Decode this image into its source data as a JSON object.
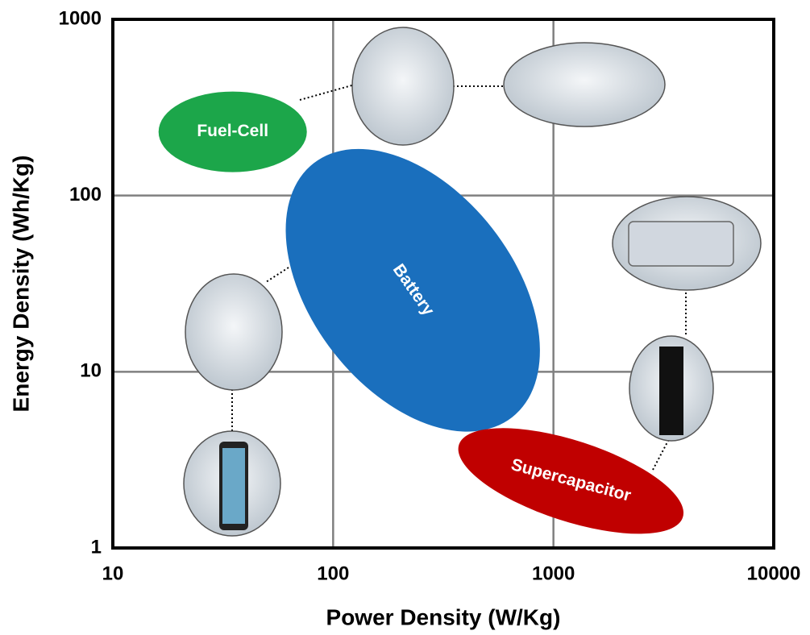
{
  "chart_data": {
    "type": "region",
    "x_label": "Power Density (W/Kg)",
    "y_label": "Energy Density (Wh/Kg)",
    "log_x": true,
    "log_y": true,
    "grid": true,
    "xlim": [
      10,
      10000
    ],
    "xticks": [
      10,
      100,
      1000,
      10000
    ],
    "ylim": [
      1,
      1000
    ],
    "yticks": [
      1,
      10,
      100,
      1000
    ],
    "regions": [
      {
        "name": "Fuel-Cell",
        "color": "#1ca64a",
        "x": 35,
        "y": 230
      },
      {
        "name": "Battery",
        "color": "#1a6fbd",
        "x": 230,
        "y": 29
      },
      {
        "name": "Supercapacitor",
        "color": "#c00000",
        "x": 1200,
        "y": 2.4
      }
    ]
  }
}
